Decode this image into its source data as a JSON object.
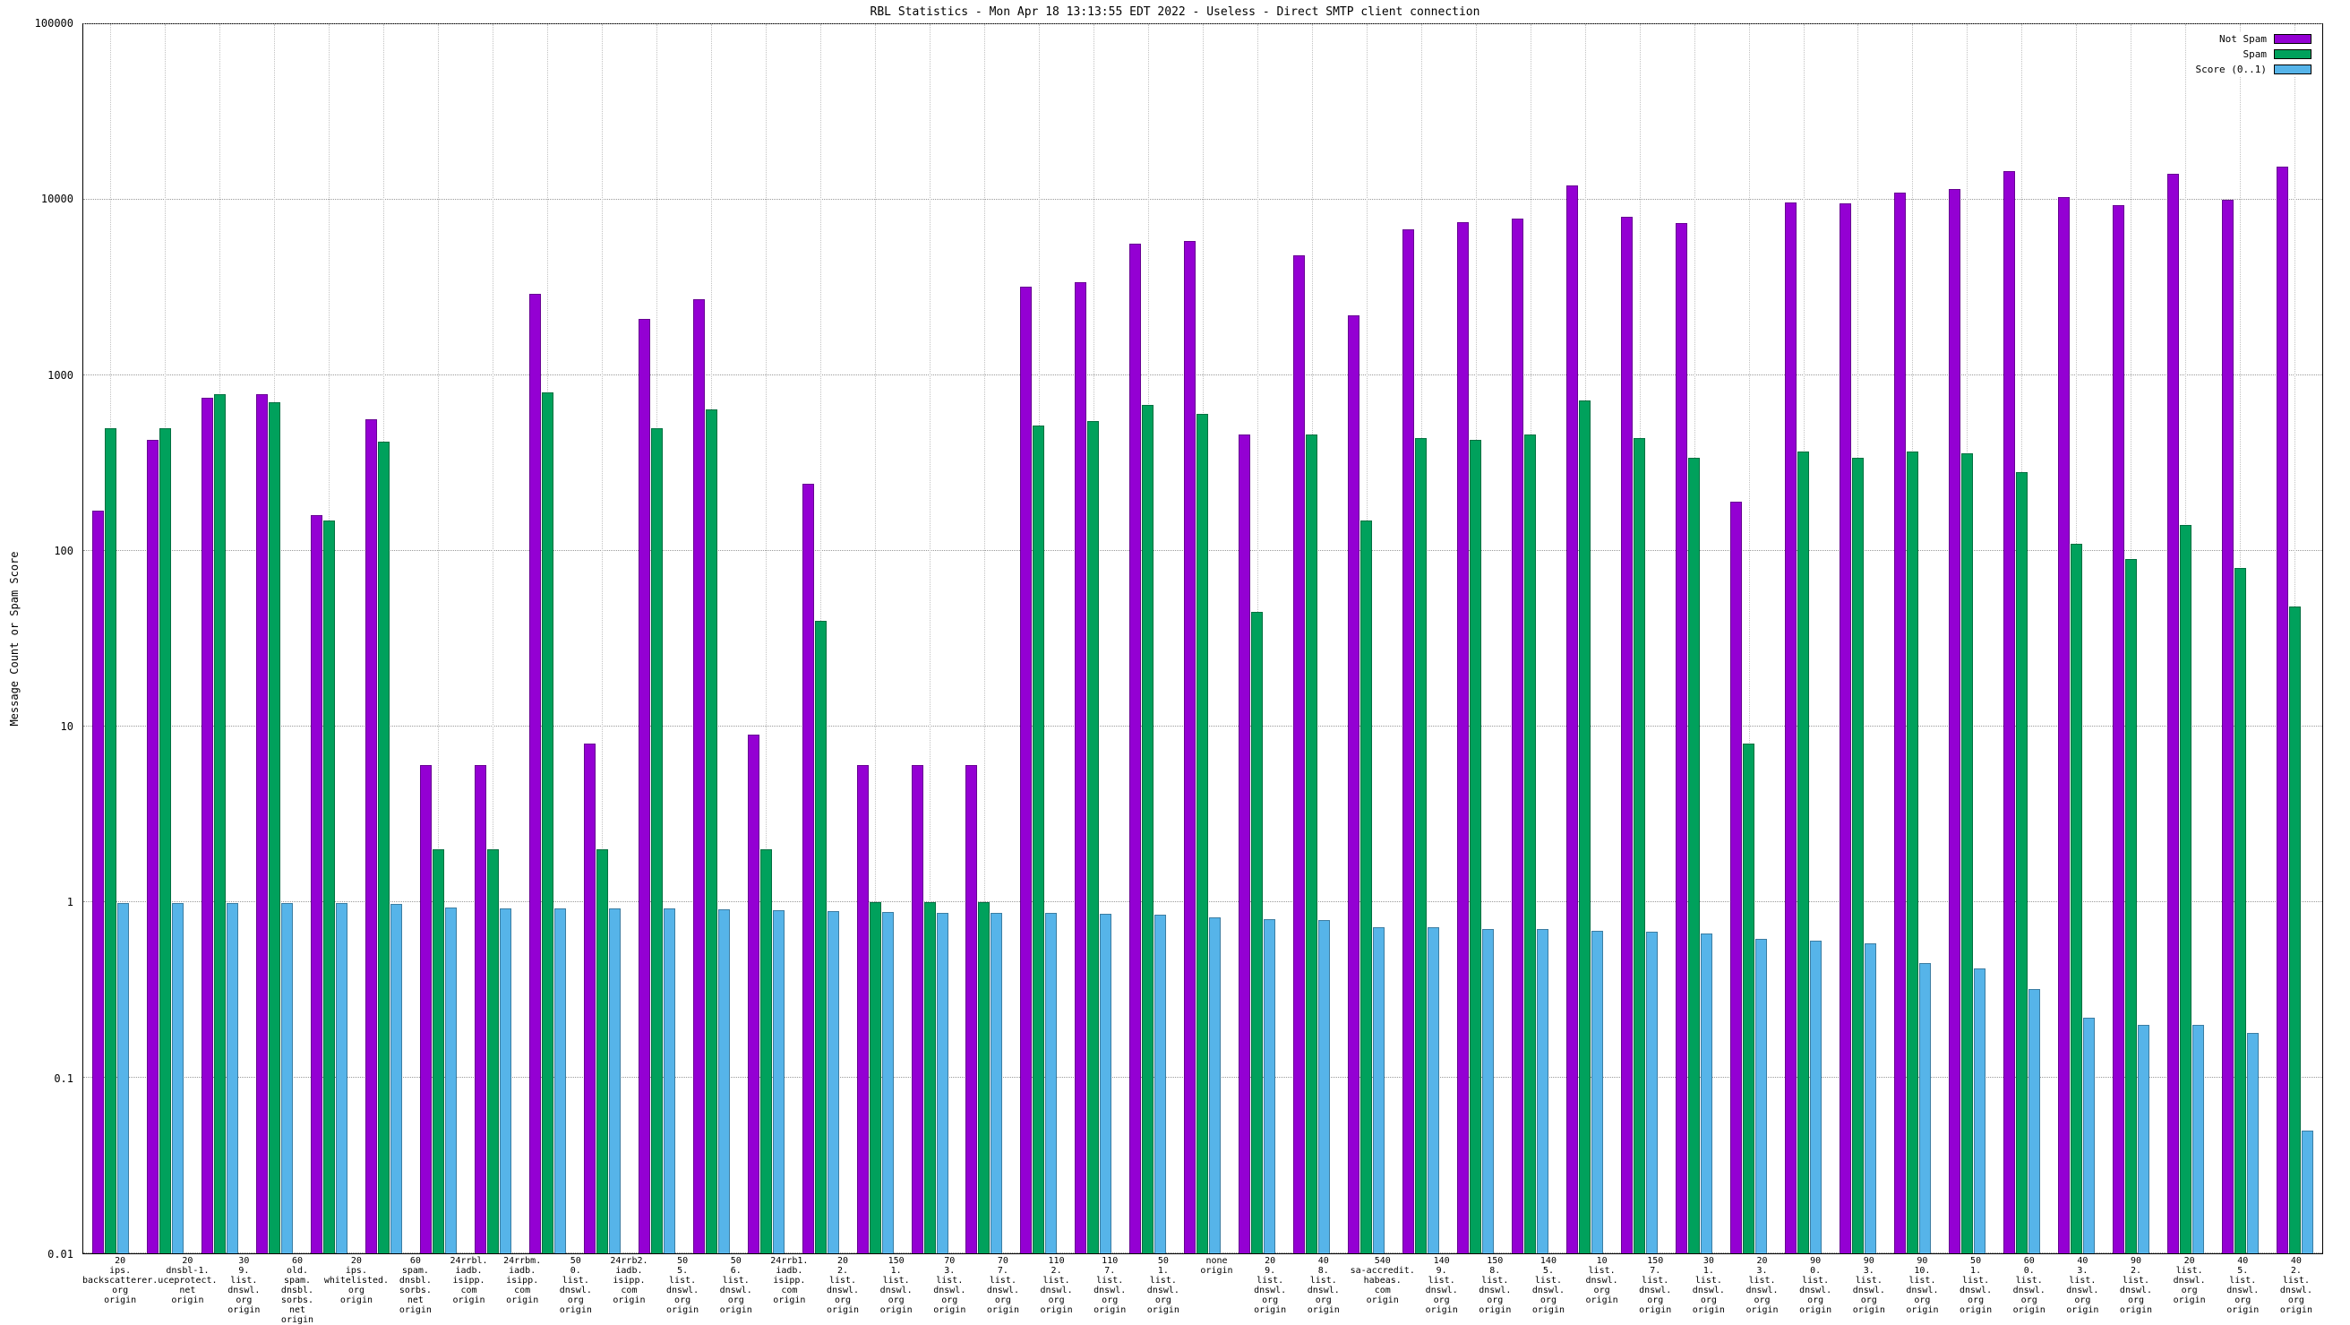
{
  "title": "RBL Statistics - Mon Apr 18 13:13:55 EDT 2022 - Useless - Direct SMTP client connection",
  "y_axis": {
    "label": "Message Count or Spam Score",
    "scale": "log",
    "ticks": [
      "100000",
      "10000",
      "1000",
      "100",
      "10",
      "1",
      "0.1",
      "0.01"
    ]
  },
  "legend": [
    {
      "label": "Not Spam",
      "color": "#9400d3"
    },
    {
      "label": "Spam",
      "color": "#00a15c"
    },
    {
      "label": "Score (0..1)",
      "color": "#56b4e9"
    }
  ],
  "chart_data": {
    "type": "bar",
    "scale": "log",
    "ylim": [
      0.01,
      100000
    ],
    "title": "RBL Statistics - Mon Apr 18 13:13:55 EDT 2022 - Useless - Direct SMTP client connection",
    "xlabel": "",
    "ylabel": "Message Count or Spam Score",
    "grid": true,
    "legend_position": "top-right",
    "categories": [
      [
        "20",
        "ips.",
        "backscatterer.",
        "org",
        "origin"
      ],
      [
        "20",
        "dnsbl-1.",
        "uceprotect.",
        "net",
        "origin"
      ],
      [
        "30",
        "9.",
        "list.",
        "dnswl.",
        "org",
        "origin"
      ],
      [
        "60",
        "old.",
        "spam.",
        "dnsbl.",
        "sorbs.",
        "net",
        "origin"
      ],
      [
        "20",
        "ips.",
        "whitelisted.",
        "org",
        "origin"
      ],
      [
        "60",
        "spam.",
        "dnsbl.",
        "sorbs.",
        "net",
        "origin"
      ],
      [
        "24rrbl.",
        "iadb.",
        "isipp.",
        "com",
        "origin"
      ],
      [
        "24rrbm.",
        "iadb.",
        "isipp.",
        "com",
        "origin"
      ],
      [
        "50",
        "0.",
        "list.",
        "dnswl.",
        "org",
        "origin"
      ],
      [
        "24rrb2.",
        "iadb.",
        "isipp.",
        "com",
        "origin"
      ],
      [
        "50",
        "5.",
        "list.",
        "dnswl.",
        "org",
        "origin"
      ],
      [
        "50",
        "6.",
        "list.",
        "dnswl.",
        "org",
        "origin"
      ],
      [
        "24rrb1.",
        "iadb.",
        "isipp.",
        "com",
        "origin"
      ],
      [
        "20",
        "2.",
        "list.",
        "dnswl.",
        "org",
        "origin"
      ],
      [
        "150",
        "1.",
        "list.",
        "dnswl.",
        "org",
        "origin"
      ],
      [
        "70",
        "3.",
        "list.",
        "dnswl.",
        "org",
        "origin"
      ],
      [
        "70",
        "7.",
        "list.",
        "dnswl.",
        "org",
        "origin"
      ],
      [
        "110",
        "2.",
        "list.",
        "dnswl.",
        "org",
        "origin"
      ],
      [
        "110",
        "7.",
        "list.",
        "dnswl.",
        "org",
        "origin"
      ],
      [
        "50",
        "1.",
        "list.",
        "dnswl.",
        "org",
        "origin"
      ],
      [
        "none",
        "origin"
      ],
      [
        "20",
        "9.",
        "list.",
        "dnswl.",
        "org",
        "origin"
      ],
      [
        "40",
        "8.",
        "list.",
        "dnswl.",
        "org",
        "origin"
      ],
      [
        "540",
        "sa-accredit.",
        "habeas.",
        "com",
        "origin"
      ],
      [
        "140",
        "9.",
        "list.",
        "dnswl.",
        "org",
        "origin"
      ],
      [
        "150",
        "8.",
        "list.",
        "dnswl.",
        "org",
        "origin"
      ],
      [
        "140",
        "5.",
        "list.",
        "dnswl.",
        "org",
        "origin"
      ],
      [
        "10",
        "list.",
        "dnswl.",
        "org",
        "origin"
      ],
      [
        "150",
        "7.",
        "list.",
        "dnswl.",
        "org",
        "origin"
      ],
      [
        "30",
        "1.",
        "list.",
        "dnswl.",
        "org",
        "origin"
      ],
      [
        "20",
        "3.",
        "list.",
        "dnswl.",
        "org",
        "origin"
      ],
      [
        "90",
        "0.",
        "list.",
        "dnswl.",
        "org",
        "origin"
      ],
      [
        "90",
        "3.",
        "list.",
        "dnswl.",
        "org",
        "origin"
      ],
      [
        "90",
        "10.",
        "list.",
        "dnswl.",
        "org",
        "origin"
      ],
      [
        "50",
        "1.",
        "list.",
        "dnswl.",
        "org",
        "origin"
      ],
      [
        "60",
        "0.",
        "list.",
        "dnswl.",
        "org",
        "origin"
      ],
      [
        "40",
        "3.",
        "list.",
        "dnswl.",
        "org",
        "origin"
      ],
      [
        "90",
        "2.",
        "list.",
        "dnswl.",
        "org",
        "origin"
      ],
      [
        "20",
        "list.",
        "dnswl.",
        "org",
        "origin"
      ],
      [
        "40",
        "5.",
        "list.",
        "dnswl.",
        "org",
        "origin"
      ],
      [
        "40",
        "2.",
        "list.",
        "dnswl.",
        "org",
        "origin"
      ]
    ],
    "series": [
      {
        "name": "Not Spam",
        "color": "#9400d3",
        "values": [
          170,
          430,
          750,
          780,
          160,
          560,
          6,
          6,
          2900,
          8,
          2100,
          2700,
          9,
          240,
          6,
          6,
          6,
          3200,
          3400,
          5600,
          5800,
          460,
          4800,
          2200,
          6800,
          7500,
          7800,
          12000,
          8000,
          7400,
          190,
          9600,
          9500,
          11000,
          11500,
          14500,
          10300,
          9300,
          14000,
          10000,
          15500
        ]
      },
      {
        "name": "Spam",
        "color": "#00a15c",
        "values": [
          500,
          500,
          780,
          700,
          150,
          420,
          2,
          2,
          800,
          2,
          500,
          640,
          2,
          40,
          1.0,
          1.0,
          1.0,
          520,
          550,
          680,
          600,
          45,
          460,
          150,
          440,
          430,
          460,
          720,
          440,
          340,
          8,
          370,
          340,
          370,
          360,
          280,
          110,
          90,
          140,
          80,
          48
        ]
      },
      {
        "name": "Score (0..1)",
        "color": "#56b4e9",
        "values": [
          0.99,
          0.99,
          0.99,
          0.99,
          0.99,
          0.98,
          0.93,
          0.92,
          0.92,
          0.92,
          0.92,
          0.91,
          0.9,
          0.89,
          0.88,
          0.87,
          0.87,
          0.87,
          0.86,
          0.85,
          0.82,
          0.8,
          0.79,
          0.72,
          0.72,
          0.7,
          0.7,
          0.69,
          0.68,
          0.66,
          0.62,
          0.6,
          0.58,
          0.45,
          0.42,
          0.32,
          0.22,
          0.2,
          0.2,
          0.18,
          0.05
        ]
      }
    ]
  }
}
